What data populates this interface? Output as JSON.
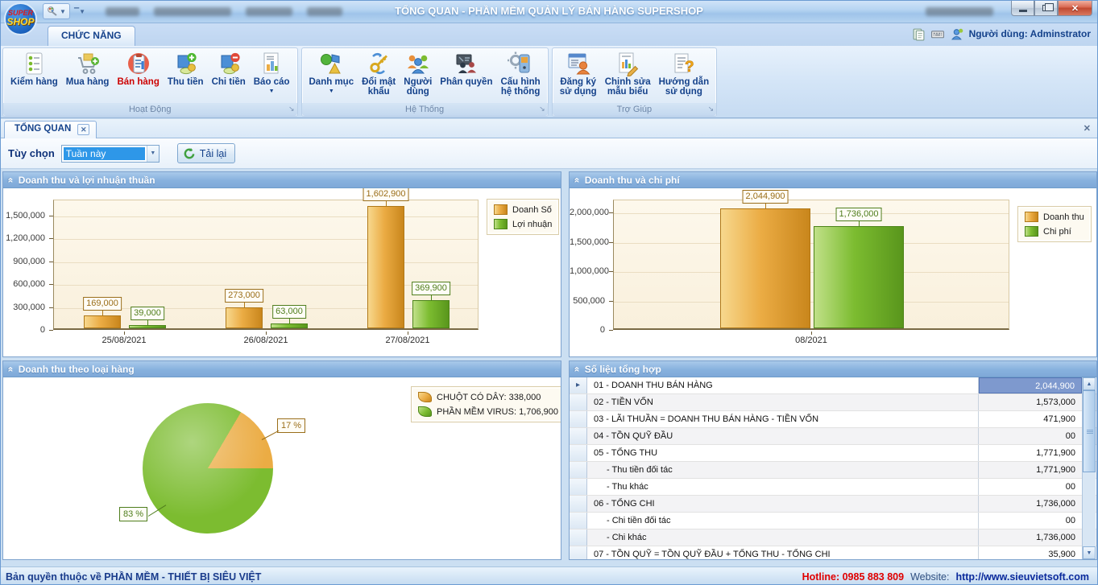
{
  "window": {
    "title": "TỔNG QUAN - PHẦN MỀM QUẢN LÝ BÁN HÀNG SUPERSHOP",
    "logo_line1": "SUPER",
    "logo_line2": "SHOP"
  },
  "ribbon": {
    "tab": "CHỨC NĂNG",
    "user_label": "Người dùng: Adminstrator",
    "groups": [
      {
        "label": "Hoạt Động",
        "items": [
          {
            "key": "kiem-hang",
            "icon": "checklist-icon",
            "lines": [
              "Kiểm hàng"
            ]
          },
          {
            "key": "mua-hang",
            "icon": "cart-icon",
            "lines": [
              "Mua hàng"
            ]
          },
          {
            "key": "ban-hang",
            "icon": "sell-icon",
            "lines": [
              "Bán hàng"
            ],
            "color": "#CC0000"
          },
          {
            "key": "thu-tien",
            "icon": "money-in-icon",
            "lines": [
              "Thu tiền"
            ]
          },
          {
            "key": "chi-tien",
            "icon": "money-out-icon",
            "lines": [
              "Chi tiền"
            ]
          },
          {
            "key": "bao-cao",
            "icon": "report-icon",
            "lines": [
              "Báo cáo"
            ],
            "dropdown": true
          }
        ]
      },
      {
        "label": "Hệ Thống",
        "items": [
          {
            "key": "danh-muc",
            "icon": "shapes-icon",
            "lines": [
              "Danh mục"
            ],
            "dropdown": true
          },
          {
            "key": "doi-mat-khau",
            "icon": "key-icon",
            "lines": [
              "Đổi mật",
              "khẩu"
            ]
          },
          {
            "key": "nguoi-dung",
            "icon": "users-icon",
            "lines": [
              "Người",
              "dùng"
            ]
          },
          {
            "key": "phan-quyen",
            "icon": "permissions-icon",
            "lines": [
              "Phân quyền"
            ]
          },
          {
            "key": "cau-hinh-he-thong",
            "icon": "config-icon",
            "lines": [
              "Cấu hình",
              "hệ thống"
            ]
          }
        ]
      },
      {
        "label": "Trợ Giúp",
        "items": [
          {
            "key": "dang-ky-su-dung",
            "icon": "register-icon",
            "lines": [
              "Đăng ký",
              "sử dụng"
            ]
          },
          {
            "key": "chinh-sua-mau-bieu",
            "icon": "edit-template-icon",
            "lines": [
              "Chinh sửa",
              "mẫu biểu"
            ]
          },
          {
            "key": "huong-dan-su-dung",
            "icon": "help-icon",
            "lines": [
              "Hướng dẫn",
              "sử dụng"
            ]
          }
        ]
      }
    ]
  },
  "document_tab": {
    "label": "TỔNG QUAN"
  },
  "filter": {
    "label": "Tùy chọn",
    "combo_value": "Tuần này",
    "reload_label": "Tải lại"
  },
  "panels": {
    "revenue_profit_title": "Doanh thu và lợi nhuận thuần",
    "revenue_cost_title": "Doanh thu và chi phí",
    "revenue_by_type_title": "Doanh thu theo loại hàng",
    "summary_title": "Số liệu tổng hợp"
  },
  "colors": {
    "orange": "#EBAC44",
    "orange_light": "#F7D88E",
    "orange_dark": "#C9861C",
    "orange_border": "#B07818",
    "orange_label": "#9A6E1A",
    "green": "#7CBC30",
    "green_light": "#C0E088",
    "green_dark": "#59961C",
    "green_border": "#4C8418",
    "green_label": "#4E7D1C",
    "selection_blue": "#7E99CE"
  },
  "chart_data": [
    {
      "type": "bar",
      "title": "Doanh thu và lợi nhuận thuần",
      "categories": [
        "25/08/2021",
        "26/08/2021",
        "27/08/2021"
      ],
      "series": [
        {
          "name": "Doanh Số",
          "color": "orange",
          "values": [
            169000,
            273000,
            1602900
          ]
        },
        {
          "name": "Lợi nhuận",
          "color": "green",
          "values": [
            39000,
            63000,
            369900
          ]
        }
      ],
      "ylim": [
        0,
        1710000
      ],
      "yticks": [
        0,
        300000,
        600000,
        900000,
        1200000,
        1500000
      ],
      "grid": true,
      "data_labels": true,
      "legend_position": "right"
    },
    {
      "type": "bar",
      "title": "Doanh thu và chi phí",
      "categories": [
        "08/2021"
      ],
      "series": [
        {
          "name": "Doanh thu",
          "color": "orange",
          "values": [
            2044900
          ]
        },
        {
          "name": "Chi phí",
          "color": "green",
          "values": [
            1736000
          ]
        }
      ],
      "ylim": [
        0,
        2220000
      ],
      "yticks": [
        0,
        500000,
        1000000,
        1500000,
        2000000
      ],
      "grid": true,
      "data_labels": true,
      "legend_position": "right"
    },
    {
      "type": "pie",
      "title": "Doanh thu theo loại hàng",
      "slices": [
        {
          "label": "CHUỘT CÓ DÂY",
          "value": 338000,
          "percent": "17 %",
          "color": "orange"
        },
        {
          "label": "PHẦN MỀM VIRUS",
          "value": 1706900,
          "percent": "83 %",
          "color": "green"
        }
      ],
      "legend_position": "top-right"
    }
  ],
  "summary_table": {
    "rows": [
      {
        "name": "01 - DOANH THU BÁN HÀNG",
        "value": "2,044,900",
        "selected": true
      },
      {
        "name": "02 - TIỀN VỐN",
        "value": "1,573,000"
      },
      {
        "name": "03 - LÃI THUẦN = DOANH THU BÁN HÀNG - TIỀN VỐN",
        "value": "471,900"
      },
      {
        "name": "04 - TỒN QUỸ ĐẦU",
        "value": "00"
      },
      {
        "name": "05 - TỔNG THU",
        "value": "1,771,900"
      },
      {
        "name": "- Thu tiền đối tác",
        "value": "1,771,900",
        "indent": true
      },
      {
        "name": "- Thu khác",
        "value": "00",
        "indent": true
      },
      {
        "name": "06 - TỔNG CHI",
        "value": "1,736,000"
      },
      {
        "name": "- Chi tiền đối tác",
        "value": "00",
        "indent": true
      },
      {
        "name": "- Chi khác",
        "value": "1,736,000",
        "indent": true
      },
      {
        "name": "07 - TỒN QUỸ = TỒN QUỸ ĐẦU + TỔNG THU - TỔNG CHI",
        "value": "35,900"
      }
    ]
  },
  "status_bar": {
    "copyright": "Bản quyền thuộc về PHẦN MỀM - THIẾT BỊ SIÊU VIỆT",
    "hotline": "Hotline: 0985 883 809",
    "website_label": "Website:",
    "website_url": "http://www.sieuvietsoft.com"
  }
}
